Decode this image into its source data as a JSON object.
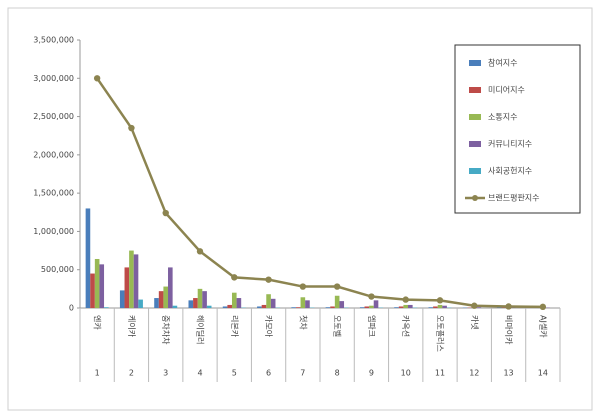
{
  "chart_data": {
    "type": "bar",
    "categories": [
      "엔카",
      "케이카",
      "중차차차",
      "헤이딜러",
      "리본카",
      "카모아",
      "첫차",
      "오토벨",
      "엠파크",
      "카옥션",
      "오토플러스",
      "카넷",
      "비마이카",
      "AJ셀카"
    ],
    "ranks": [
      1,
      2,
      3,
      4,
      5,
      6,
      7,
      8,
      9,
      10,
      11,
      12,
      13,
      14
    ],
    "series": [
      {
        "name": "참여지수",
        "color": "#4a7ebb",
        "values": [
          1300000,
          230000,
          130000,
          100000,
          20000,
          20000,
          10000,
          10000,
          10000,
          10000,
          10000,
          5000,
          5000,
          2000
        ]
      },
      {
        "name": "미디어지수",
        "color": "#be4b48",
        "values": [
          450000,
          530000,
          220000,
          130000,
          40000,
          40000,
          10000,
          20000,
          20000,
          20000,
          20000,
          5000,
          5000,
          5000
        ]
      },
      {
        "name": "소통지수",
        "color": "#98b954",
        "values": [
          640000,
          750000,
          280000,
          250000,
          200000,
          180000,
          140000,
          160000,
          30000,
          40000,
          40000,
          10000,
          5000,
          5000
        ]
      },
      {
        "name": "커뮤니티지수",
        "color": "#7d60a0",
        "values": [
          570000,
          700000,
          530000,
          220000,
          130000,
          120000,
          100000,
          90000,
          100000,
          40000,
          30000,
          10000,
          5000,
          5000
        ]
      },
      {
        "name": "사회공헌지수",
        "color": "#46aac5",
        "values": [
          10000,
          110000,
          30000,
          30000,
          5000,
          5000,
          5000,
          5000,
          5000,
          5000,
          5000,
          0,
          0,
          0
        ]
      },
      {
        "name": "브랜드평판지수",
        "color": "#8c8450",
        "type": "line",
        "values": [
          3000000,
          2350000,
          1240000,
          740000,
          400000,
          370000,
          280000,
          280000,
          150000,
          110000,
          100000,
          30000,
          20000,
          15000
        ]
      }
    ],
    "ylim": [
      0,
      3500000
    ],
    "yticks": [
      0,
      {
        "value": 500000,
        "label": "500,000"
      },
      {
        "value": 1000000,
        "label": "1,000,000"
      },
      {
        "value": 1500000,
        "label": "1,500,000"
      },
      {
        "value": 2000000,
        "label": "2,000,000"
      },
      {
        "value": 2500000,
        "label": "2,500,000"
      },
      {
        "value": 3000000,
        "label": "3,000,000"
      },
      {
        "value": 3500000,
        "label": "3,500,000"
      }
    ],
    "legend": "top-right"
  }
}
